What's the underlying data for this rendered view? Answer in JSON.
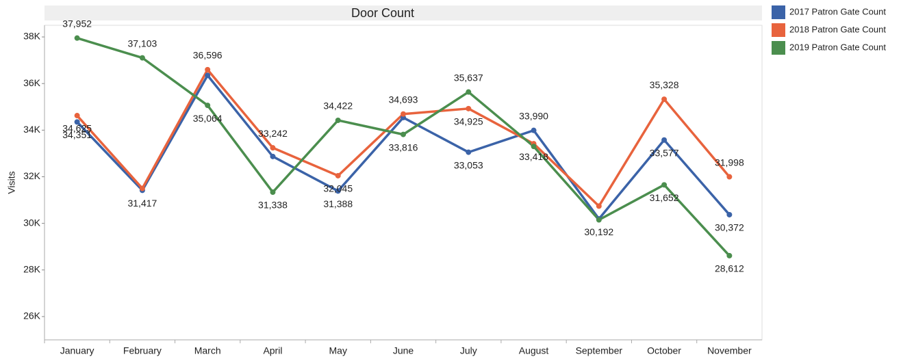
{
  "chart_data": {
    "type": "line",
    "title": "Door Count",
    "y_label": "Visits",
    "categories": [
      "January",
      "February",
      "March",
      "April",
      "May",
      "June",
      "July",
      "August",
      "September",
      "October",
      "November"
    ],
    "series": [
      {
        "name": "2017 Patron Gate Count",
        "color": "#3b63a8",
        "values": [
          34351,
          31417,
          36350,
          32870,
          31388,
          34540,
          33053,
          33990,
          30192,
          33577,
          30372
        ],
        "value_labels": [
          "34,351",
          "31,417",
          null,
          null,
          "31,388",
          null,
          "33,053",
          "33,990",
          "30,192",
          "33,577",
          "30,372"
        ]
      },
      {
        "name": "2018 Patron Gate Count",
        "color": "#e8633d",
        "values": [
          34625,
          31500,
          36596,
          33242,
          32045,
          34693,
          34925,
          33418,
          30740,
          35328,
          31998
        ],
        "value_labels": [
          "34,625",
          null,
          "36,596",
          "33,242",
          "32,045",
          "34,693",
          "34,925",
          "33,418",
          null,
          "35,328",
          "31,998"
        ]
      },
      {
        "name": "2019 Patron Gate Count",
        "color": "#4b8e4e",
        "values": [
          37952,
          37103,
          35064,
          31338,
          34422,
          33816,
          35637,
          33300,
          30150,
          31652,
          28612
        ],
        "value_labels": [
          "37,952",
          "37,103",
          "35,064",
          "31,338",
          "34,422",
          "33,816",
          "35,637",
          null,
          null,
          "31,652",
          "28,612"
        ]
      }
    ],
    "ylim": [
      25000,
      38500
    ],
    "yticks": [
      {
        "value": 26000,
        "label": "26K"
      },
      {
        "value": 28000,
        "label": "28K"
      },
      {
        "value": 30000,
        "label": "30K"
      },
      {
        "value": 32000,
        "label": "32K"
      },
      {
        "value": 34000,
        "label": "34K"
      },
      {
        "value": 36000,
        "label": "36K"
      },
      {
        "value": 38000,
        "label": "38K"
      }
    ],
    "grid": false,
    "legend": "right"
  }
}
